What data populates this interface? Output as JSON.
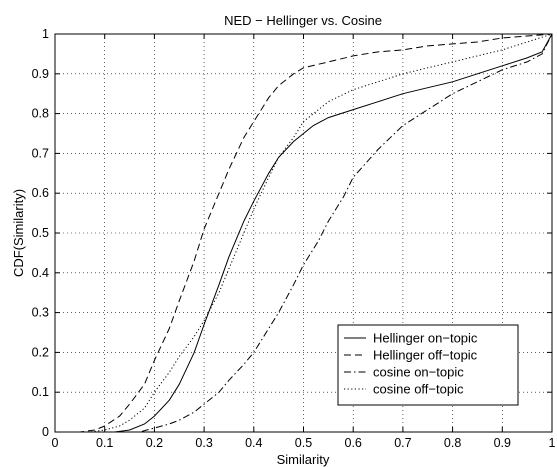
{
  "chart_data": {
    "type": "line",
    "title": "NED − Hellinger vs. Cosine",
    "xlabel": "Similarity",
    "ylabel": "CDF(Similarity)",
    "xlim": [
      0,
      1
    ],
    "ylim": [
      0,
      1
    ],
    "grid": true,
    "legend_position": "bottom-right",
    "xticks": [
      "0",
      "0.1",
      "0.2",
      "0.3",
      "0.4",
      "0.5",
      "0.6",
      "0.7",
      "0.8",
      "0.9",
      "1"
    ],
    "yticks": [
      "0",
      "0.1",
      "0.2",
      "0.3",
      "0.4",
      "0.5",
      "0.6",
      "0.7",
      "0.8",
      "0.9",
      "1"
    ],
    "series": [
      {
        "name": "Hellinger on−topic",
        "style": "solid",
        "x": [
          0,
          0.12,
          0.15,
          0.18,
          0.2,
          0.23,
          0.25,
          0.28,
          0.3,
          0.33,
          0.35,
          0.38,
          0.4,
          0.43,
          0.45,
          0.48,
          0.5,
          0.52,
          0.55,
          0.6,
          0.65,
          0.7,
          0.75,
          0.8,
          0.85,
          0.9,
          0.95,
          0.98,
          1.0
        ],
        "y": [
          0,
          0,
          0.005,
          0.02,
          0.04,
          0.08,
          0.12,
          0.2,
          0.27,
          0.37,
          0.44,
          0.53,
          0.58,
          0.65,
          0.69,
          0.73,
          0.75,
          0.77,
          0.79,
          0.81,
          0.83,
          0.85,
          0.865,
          0.88,
          0.9,
          0.92,
          0.94,
          0.955,
          1.0
        ]
      },
      {
        "name": "Hellinger off−topic",
        "style": "dashed",
        "x": [
          0,
          0.05,
          0.08,
          0.1,
          0.13,
          0.15,
          0.18,
          0.2,
          0.23,
          0.25,
          0.28,
          0.3,
          0.33,
          0.35,
          0.38,
          0.4,
          0.43,
          0.45,
          0.48,
          0.5,
          0.55,
          0.6,
          0.65,
          0.7,
          0.75,
          0.8,
          0.85,
          0.9,
          0.95,
          1.0
        ],
        "y": [
          0,
          0,
          0.005,
          0.015,
          0.04,
          0.07,
          0.12,
          0.18,
          0.26,
          0.33,
          0.43,
          0.51,
          0.6,
          0.66,
          0.74,
          0.78,
          0.84,
          0.87,
          0.9,
          0.915,
          0.93,
          0.945,
          0.955,
          0.96,
          0.97,
          0.975,
          0.98,
          0.99,
          0.995,
          1.0
        ]
      },
      {
        "name": "cosine on−topic",
        "style": "dashdot",
        "x": [
          0,
          0.17,
          0.2,
          0.23,
          0.25,
          0.28,
          0.3,
          0.33,
          0.35,
          0.38,
          0.4,
          0.43,
          0.45,
          0.48,
          0.5,
          0.53,
          0.55,
          0.58,
          0.6,
          0.65,
          0.7,
          0.75,
          0.8,
          0.85,
          0.9,
          0.95,
          0.98,
          1.0
        ],
        "y": [
          0,
          0,
          0.01,
          0.02,
          0.03,
          0.05,
          0.07,
          0.1,
          0.13,
          0.17,
          0.2,
          0.26,
          0.3,
          0.37,
          0.42,
          0.48,
          0.53,
          0.59,
          0.64,
          0.71,
          0.77,
          0.81,
          0.85,
          0.88,
          0.91,
          0.93,
          0.95,
          1.0
        ]
      },
      {
        "name": "cosine off−topic",
        "style": "dotted",
        "x": [
          0,
          0.07,
          0.1,
          0.13,
          0.15,
          0.18,
          0.2,
          0.23,
          0.25,
          0.28,
          0.3,
          0.33,
          0.35,
          0.38,
          0.4,
          0.43,
          0.45,
          0.48,
          0.5,
          0.55,
          0.6,
          0.65,
          0.7,
          0.75,
          0.8,
          0.85,
          0.9,
          0.95,
          1.0
        ],
        "y": [
          0,
          0,
          0.005,
          0.015,
          0.03,
          0.06,
          0.1,
          0.15,
          0.19,
          0.24,
          0.28,
          0.35,
          0.41,
          0.5,
          0.56,
          0.64,
          0.69,
          0.74,
          0.78,
          0.83,
          0.86,
          0.88,
          0.9,
          0.915,
          0.93,
          0.945,
          0.96,
          0.98,
          1.0
        ]
      }
    ]
  }
}
